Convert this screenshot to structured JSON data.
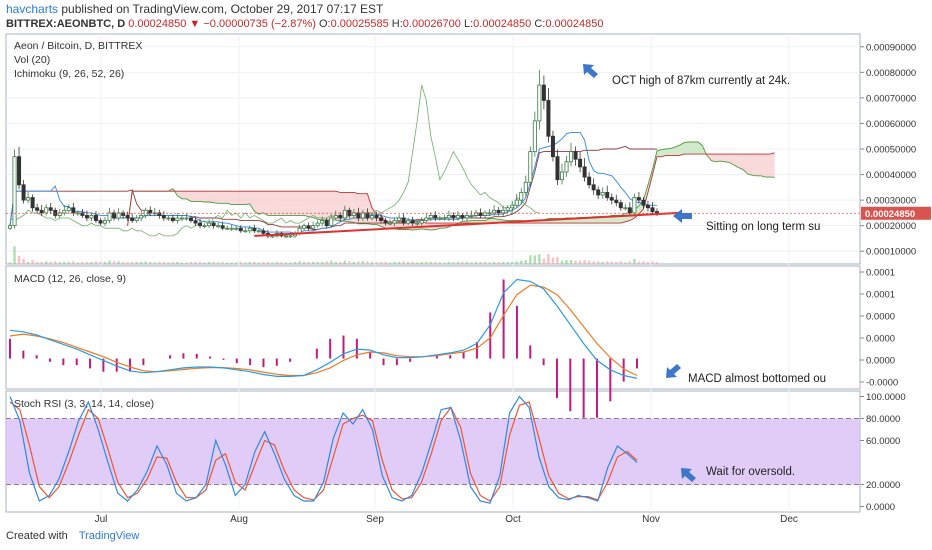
{
  "header": {
    "author": "havcharts",
    "published": "published on TradingView.com, October 29, 2017 07:17 EST",
    "symbol": "BITTREX:AEONBTC, D",
    "last": "0.00024850",
    "change": "−0.00000735 (−2.87%)",
    "o_label": "O:",
    "o": "0.00025585",
    "h_label": "H:",
    "h": "0.00026700",
    "l_label": "L:",
    "l": "0.00024850",
    "c_label": "C:",
    "c": "0.00024850"
  },
  "footer": {
    "created": "Created with",
    "brand": "TradingView"
  },
  "colors": {
    "price_up": "#3a7a45",
    "price_down": "#333333",
    "trend": "#e03030",
    "tenkan": "#2f89e0",
    "kijun": "#8e3a3a",
    "span_a": "#4e9a3c",
    "span_b": "#c03030",
    "macd": "#2b9be0",
    "signal": "#ee7b24",
    "hist": "#c2187f",
    "stoch_k": "#2f89e0",
    "stoch_d": "#ee5533",
    "band": "#dcc3f6",
    "arrow": "#3d78c8"
  },
  "chart_data": [
    {
      "type": "candlestick",
      "panel": "price",
      "legend": [
        "Aeon / Bitcoin, D, BITTREX",
        "Vol (20)",
        "Ichimoku (9, 26, 52, 26)"
      ],
      "y_ticks": [
        "0.00090000",
        "0.00080000",
        "0.00070000",
        "0.00060000",
        "0.00050000",
        "0.00040000",
        "0.00030000",
        "0.00020000",
        "0.00010000"
      ],
      "ylim": [
        5e-05,
        0.00095
      ],
      "last_price_label": "0.00024850",
      "last_price": 0.0002485,
      "x_ticks": [
        "Jul",
        "Aug",
        "Sep",
        "Oct",
        "Nov",
        "Dec"
      ],
      "close": [
        0.0002,
        0.00047,
        0.00036,
        0.0003,
        0.00031,
        0.00027,
        0.00026,
        0.00025,
        0.00027,
        0.00026,
        0.00024,
        0.00025,
        0.00026,
        0.00027,
        0.00025,
        0.00025,
        0.00024,
        0.00023,
        0.00024,
        0.00022,
        0.00021,
        0.00022,
        0.00025,
        0.00023,
        0.00025,
        0.00024,
        0.00023,
        0.00022,
        0.00023,
        0.00024,
        0.00026,
        0.00025,
        0.00025,
        0.00024,
        0.00023,
        0.00023,
        0.00022,
        0.00023,
        0.00023,
        0.00023,
        0.00022,
        0.00021,
        0.0002,
        0.0002,
        0.00021,
        0.0002,
        0.0002,
        0.00019,
        0.00019,
        0.00019,
        0.00019,
        0.00018,
        0.00018,
        0.00019,
        0.00018,
        0.00018,
        0.00017,
        0.00016,
        0.00016,
        0.00017,
        0.00016,
        0.00016,
        0.00016,
        0.00017,
        0.00019,
        0.0002,
        0.00019,
        0.0002,
        0.00021,
        0.00022,
        0.0002,
        0.00023,
        0.00024,
        0.00023,
        0.00026,
        0.00024,
        0.00025,
        0.00023,
        0.00025,
        0.00023,
        0.00024,
        0.00023,
        0.00022,
        0.00021,
        0.00021,
        0.00022,
        0.00023,
        0.00021,
        0.00022,
        0.00021,
        0.00021,
        0.00022,
        0.00023,
        0.00024,
        0.00023,
        0.00023,
        0.00023,
        0.00024,
        0.00023,
        0.00024,
        0.00023,
        0.00024,
        0.00024,
        0.00025,
        0.00024,
        0.00025,
        0.00025,
        0.00026,
        0.00025,
        0.00026,
        0.00027,
        0.00028,
        0.0003,
        0.00033,
        0.00037,
        0.00049,
        0.00061,
        0.00075,
        0.00069,
        0.00055,
        0.00047,
        0.00038,
        0.00041,
        0.00045,
        0.00049,
        0.00046,
        0.00043,
        0.00039,
        0.00036,
        0.00034,
        0.00032,
        0.00033,
        0.00031,
        0.0003,
        0.00029,
        0.00027,
        0.00027,
        0.00025,
        0.00031,
        0.0003,
        0.00028,
        0.00027,
        0.000255,
        0.0002485
      ],
      "trendline": {
        "from": [
          54,
          0.00016
        ],
        "to": [
          148,
          0.00025
        ]
      },
      "annotations": [
        "OCT high of 87km currently at 24k.",
        "Sitting on long term su"
      ]
    },
    {
      "type": "line",
      "panel": "macd",
      "legend": "MACD (12, 26, close, 9)",
      "y_ticks": [
        "0.0001",
        "0.0001",
        "0.0000",
        "0.0000",
        "0.0000",
        "-0.0000"
      ],
      "series": [
        {
          "name": "MACD",
          "values": [
            1.5e-05,
            1.42e-05,
            1.25e-05,
            1e-05,
            7.5e-06,
            5e-06,
            2e-06,
            -1e-06,
            -4e-06,
            -6.5e-06,
            -7.5e-06,
            -7e-06,
            -6e-06,
            -5e-06,
            -4.5e-06,
            -4.5e-06,
            -5e-06,
            -6e-06,
            -7e-06,
            -8.5e-06,
            -9.5e-06,
            -9.5e-06,
            -9e-06,
            -6e-06,
            -2e-06,
            2.5e-06,
            5e-06,
            4.5e-06,
            2e-06,
            5e-07,
            5e-07,
            1e-06,
            2e-06,
            3e-06,
            4.5e-06,
            8e-06,
            1.8e-05,
            3.5e-05,
            4.2e-05,
            4.1e-05,
            3.7e-05,
            2.8e-05,
            1.8e-05,
            8e-06,
            -1e-06,
            -6e-06,
            -9e-06,
            -1.05e-05
          ]
        },
        {
          "name": "Signal",
          "values": [
            1.2e-05,
            1.3e-05,
            1.2e-05,
            1.05e-05,
            8.5e-06,
            6e-06,
            3.5e-06,
            1e-06,
            -2e-06,
            -4.5e-06,
            -6.5e-06,
            -7e-06,
            -6.5e-06,
            -5.8e-06,
            -5.2e-06,
            -4.8e-06,
            -4.8e-06,
            -5.3e-06,
            -6e-06,
            -7.2e-06,
            -8.4e-06,
            -9e-06,
            -9e-06,
            -7.5e-06,
            -5e-06,
            -1e-06,
            2e-06,
            3.5e-06,
            3e-06,
            1.5e-06,
            1e-06,
            1e-06,
            1.5e-06,
            2.5e-06,
            3.5e-06,
            5.5e-06,
            1.1e-05,
            2.3e-05,
            3.4e-05,
            3.9e-05,
            3.8e-05,
            3.4e-05,
            2.6e-05,
            1.7e-05,
            8e-06,
            5e-07,
            -5.5e-06,
            -9e-06
          ]
        }
      ]
    },
    {
      "type": "line",
      "panel": "stoch_rsi",
      "legend": "Stoch RSI (3, 3, 14, 14, close)",
      "y_ticks": [
        "100.0000",
        "80.0000",
        "60.0000",
        "20.0000",
        "0.0000"
      ],
      "ylim": [
        -5,
        105
      ],
      "band": [
        20,
        80
      ],
      "series": [
        {
          "name": "%K",
          "values": [
            100,
            78,
            30,
            5,
            10,
            25,
            50,
            78,
            95,
            70,
            40,
            12,
            5,
            15,
            32,
            55,
            38,
            12,
            5,
            8,
            20,
            60,
            38,
            10,
            20,
            50,
            68,
            48,
            25,
            10,
            5,
            5,
            22,
            62,
            85,
            75,
            88,
            70,
            28,
            8,
            5,
            10,
            30,
            58,
            88,
            90,
            60,
            18,
            5,
            3,
            28,
            85,
            100,
            90,
            45,
            18,
            8,
            6,
            10,
            8,
            5,
            35,
            55,
            48,
            40
          ]
        },
        {
          "name": "%D",
          "values": [
            95,
            88,
            55,
            18,
            8,
            18,
            40,
            65,
            88,
            80,
            52,
            22,
            8,
            12,
            25,
            45,
            44,
            22,
            8,
            8,
            15,
            42,
            48,
            22,
            15,
            38,
            60,
            56,
            33,
            15,
            8,
            6,
            15,
            45,
            75,
            80,
            83,
            78,
            42,
            15,
            7,
            8,
            22,
            48,
            78,
            90,
            72,
            30,
            10,
            5,
            18,
            65,
            92,
            95,
            62,
            28,
            12,
            7,
            9,
            9,
            6,
            22,
            45,
            50,
            42
          ]
        }
      ],
      "annotation": "Wait for oversold."
    }
  ],
  "annotations": {
    "macd": "MACD almost bottomed ou"
  }
}
